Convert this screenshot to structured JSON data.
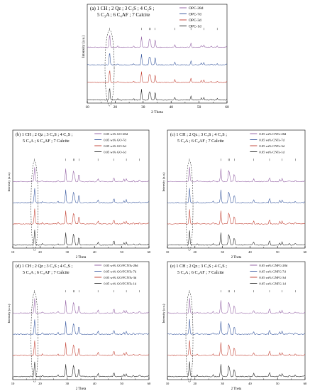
{
  "figure": {
    "background": "#ffffff"
  },
  "chart_data": [
    {
      "id": "a",
      "type": "line",
      "title": "(a) 1 CH ; 2 Qz ; 3 C₃S ; 4 C₂S ; 5 C₃A ; 6 C₄AF ; 7 Calcite",
      "title_line1": "(a) 1 CH ; 2 Qz ; 3 C₃S ; 4 C₂S ;",
      "title_line2": "5 C₃A ; 6 C₄AF ; 7 Calcite",
      "xlabel": "2 Theta",
      "ylabel": "Intensity (a.u.)",
      "xlim": [
        10,
        60
      ],
      "xticks": [
        "10",
        "20",
        "30",
        "40",
        "50",
        "60"
      ],
      "grid": false,
      "legend_position": "top-right",
      "series": [
        {
          "name": "OPC-1d",
          "color": "#1a1a1a"
        },
        {
          "name": "OPC-3d",
          "color": "#c0392b"
        },
        {
          "name": "OPC-7d",
          "color": "#2e4f9a"
        },
        {
          "name": "OPC-28d",
          "color": "#8e5aa0"
        }
      ],
      "peaks_2theta": [
        18.0,
        29.4,
        32.2,
        32.6,
        34.3,
        41.3,
        47.1,
        51.7,
        56.5
      ],
      "annotation": "dashed ellipse around 2θ ≈ 18"
    },
    {
      "id": "b",
      "type": "line",
      "title": "(b) 1 CH ; 2 Qz ; 3 C₃S ; 4 C₂S ; 5 C₃A ; 6 C₄AF ; 7 Calcite",
      "title_line1": "(b) 1 CH ; 2 Qz ; 3 C₃S ; 4 C₂S ;",
      "title_line2": "5 C₃A ; 6 C₄AF ; 7 Calcite",
      "xlabel": "2 Theta",
      "ylabel": "Intensity (a.u.)",
      "xlim": [
        10,
        60
      ],
      "xticks": [
        "10",
        "20",
        "30",
        "40",
        "50",
        "60"
      ],
      "grid": false,
      "legend_position": "top-right",
      "series": [
        {
          "name": "0.05 wt% GO-1d",
          "color": "#1a1a1a"
        },
        {
          "name": "0.05 wt% GO-3d",
          "color": "#c0392b"
        },
        {
          "name": "0.05 wt% GO-7d",
          "color": "#2e4f9a"
        },
        {
          "name": "0.05 wt% GO-28d",
          "color": "#8e5aa0"
        }
      ],
      "peaks_2theta": [
        18.0,
        29.4,
        32.2,
        32.6,
        34.3,
        41.3,
        47.1,
        51.7,
        56.5
      ],
      "annotation": "dashed ellipse around 2θ ≈ 18"
    },
    {
      "id": "c",
      "type": "line",
      "title": "(c) 1 CH ; 2 Qz ; 3 C₃S ; 4 C₂S ; 5 C₃A ; 6 C₄AF ; 7 Calcite",
      "title_line1": "(c) 1 CH ; 2 Qz ; 3 C₃S ; 4 C₂S ;",
      "title_line2": "5 C₃A ; 6 C₄AF ; 7 Calcite",
      "xlabel": "2 Theta",
      "ylabel": "Intensity (a.u.)",
      "xlim": [
        10,
        60
      ],
      "xticks": [
        "10",
        "20",
        "30",
        "40",
        "50",
        "60"
      ],
      "grid": false,
      "legend_position": "top-right",
      "series": [
        {
          "name": "0.05 wt% CNTs-1d",
          "color": "#1a1a1a"
        },
        {
          "name": "0.05 wt% CNTs-3d",
          "color": "#c0392b"
        },
        {
          "name": "0.05 wt% CNTs-7d",
          "color": "#2e4f9a"
        },
        {
          "name": "0.05 wt% CNTs-28d",
          "color": "#8e5aa0"
        }
      ],
      "peaks_2theta": [
        18.0,
        29.4,
        32.2,
        32.6,
        34.3,
        41.3,
        47.1,
        51.7,
        56.5
      ],
      "annotation": "dashed ellipse around 2θ ≈ 18"
    },
    {
      "id": "d",
      "type": "line",
      "title": "(d) 1 CH ; 2 Qz ; 3 C₃S ; 4 C₂S ; 5 C₃A ; 6 C₄AF ; 7 Calcite",
      "title_line1": "(d) 1 CH ; 2 Qz ; 3 C₃S ; 4 C₂S ;",
      "title_line2": "5 C₃A ; 6 C₄AF ; 7 Calcite",
      "xlabel": "2 Theta",
      "ylabel": "Intensity (a.u.)",
      "xlim": [
        10,
        60
      ],
      "xticks": [
        "10",
        "20",
        "30",
        "40",
        "50",
        "60"
      ],
      "grid": false,
      "legend_position": "top-right",
      "series": [
        {
          "name": "0.05 wt% GO/FCNTs-1d",
          "color": "#1a1a1a"
        },
        {
          "name": "0.05 wt% GO/FCNTs-3d",
          "color": "#c0392b"
        },
        {
          "name": "0.05 wt% GO/FCNTs-7d",
          "color": "#2e4f9a"
        },
        {
          "name": "0.05 wt% GO/FCNTs-28d",
          "color": "#8e5aa0"
        }
      ],
      "peaks_2theta": [
        18.0,
        29.4,
        32.2,
        32.6,
        34.3,
        41.3,
        47.1,
        51.7,
        56.5
      ],
      "annotation": "dashed ellipse around 2θ ≈ 18"
    },
    {
      "id": "e",
      "type": "line",
      "title": "(e) 1 CH ; 2 Qz ; 3 C₃S ; 4 C₂S ; 5 C₃A ; 6 C₄AF ; 7 Calcite",
      "title_line1": "(e) 1 CH ; 2 Qz ; 3 C₃S ; 4 C₂S ;",
      "title_line2": "5 C₃A ; 6 C₄AF ; 7 Calcite",
      "xlabel": "2 Theta",
      "ylabel": "Intensity (a.u.)",
      "xlim": [
        10,
        60
      ],
      "xticks": [
        "10",
        "20",
        "30",
        "40",
        "50",
        "60"
      ],
      "grid": false,
      "legend_position": "top-right",
      "series": [
        {
          "name": "0.05 wt% GNFG-1d",
          "color": "#1a1a1a"
        },
        {
          "name": "0.05 wt% GNFG-3d",
          "color": "#c0392b"
        },
        {
          "name": "0.05 wt% GNFG-7d",
          "color": "#2e4f9a"
        },
        {
          "name": "0.05 wt% GNFG-28d",
          "color": "#8e5aa0"
        }
      ],
      "peaks_2theta": [
        18.0,
        29.4,
        32.2,
        32.6,
        34.3,
        41.3,
        47.1,
        51.7,
        56.5
      ],
      "annotation": "dashed ellipse around 2θ ≈ 18"
    }
  ]
}
